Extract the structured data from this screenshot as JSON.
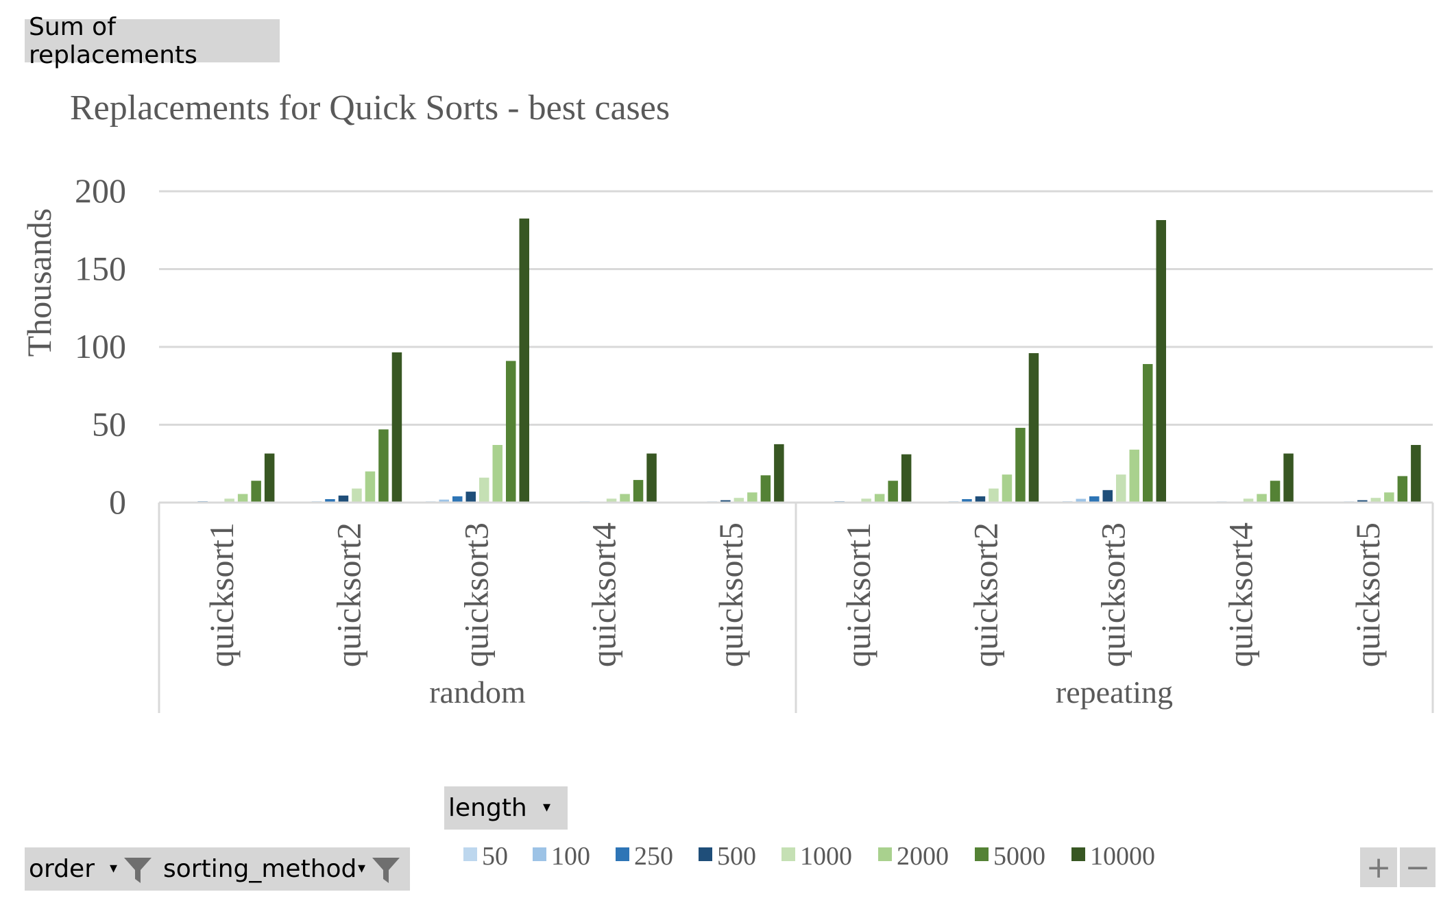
{
  "pivot": {
    "values_field": "Sum of replacements",
    "legend_field": "length",
    "axis_fields": [
      "order",
      "sorting_method"
    ],
    "zoom_in": "+",
    "zoom_out": "−"
  },
  "chart_data": {
    "type": "bar",
    "title": "Replacements for Quick Sorts - best cases",
    "ylabel": "Thousands",
    "xlabel": "",
    "ylim": [
      0,
      200
    ],
    "yticks": [
      0,
      50,
      100,
      150,
      200
    ],
    "grid": true,
    "legend_position": "bottom",
    "groups": [
      {
        "name": "random",
        "categories": [
          "quicksort1",
          "quicksort2",
          "quicksort3",
          "quicksort4",
          "quicksort5"
        ]
      },
      {
        "name": "repeating",
        "categories": [
          "quicksort1",
          "quicksort2",
          "quicksort3",
          "quicksort4",
          "quicksort5"
        ]
      }
    ],
    "series": [
      {
        "name": "50",
        "color": "#bdd7ee",
        "values": [
          0.1,
          0.3,
          0.8,
          0.1,
          0.1,
          0.1,
          0.3,
          0.9,
          0.1,
          0.1
        ]
      },
      {
        "name": "100",
        "color": "#9dc3e6",
        "values": [
          0.3,
          0.8,
          1.9,
          0.2,
          0.2,
          0.3,
          0.8,
          2.4,
          0.2,
          0.2
        ]
      },
      {
        "name": "250",
        "color": "#2e75b6",
        "values": [
          0.8,
          2.2,
          4.0,
          0.7,
          0.7,
          0.8,
          2.2,
          4.0,
          0.7,
          0.7
        ]
      },
      {
        "name": "500",
        "color": "#1f4e79",
        "values": [
          0.6,
          4.5,
          7.0,
          0.5,
          1.5,
          0.6,
          4.0,
          8.0,
          0.5,
          1.5
        ]
      },
      {
        "name": "1000",
        "color": "#c5e0b4",
        "values": [
          2.5,
          9.0,
          16.0,
          2.5,
          3.0,
          2.5,
          9.0,
          18.0,
          2.5,
          3.0
        ]
      },
      {
        "name": "2000",
        "color": "#a9d18e",
        "values": [
          5.5,
          20.0,
          37.0,
          5.5,
          6.5,
          5.5,
          18.0,
          34.0,
          5.5,
          6.5
        ]
      },
      {
        "name": "5000",
        "color": "#548235",
        "values": [
          14.0,
          47.0,
          91.0,
          14.5,
          17.5,
          14.0,
          48.0,
          89.0,
          14.0,
          17.0
        ]
      },
      {
        "name": "10000",
        "color": "#385723",
        "values": [
          31.5,
          96.5,
          182.5,
          31.5,
          37.5,
          31.0,
          96.0,
          181.5,
          31.5,
          37.0
        ]
      }
    ]
  }
}
